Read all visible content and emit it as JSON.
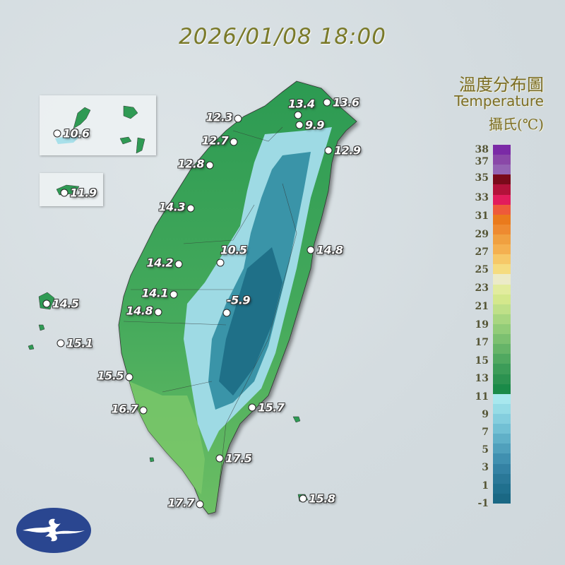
{
  "header": {
    "timestamp": "2026/01/08 18:00"
  },
  "legend": {
    "title_zh": "溫度分布圖",
    "title_en": "Temperature",
    "unit": "攝氏(℃)",
    "ticks": [
      "38",
      "37",
      "35",
      "33",
      "31",
      "29",
      "27",
      "25",
      "23",
      "21",
      "19",
      "17",
      "15",
      "13",
      "11",
      "9",
      "7",
      "5",
      "3",
      "1",
      "-1"
    ],
    "colors": [
      "#7b2aa6",
      "#8a48a8",
      "#9463b3",
      "#7a0a1a",
      "#b3123a",
      "#e21c5c",
      "#ee5a3a",
      "#ea7a1c",
      "#ee8a30",
      "#f0a040",
      "#f4b050",
      "#f6c868",
      "#f5dc80",
      "#ecebc8",
      "#e2ec9e",
      "#d4e88c",
      "#bfe088",
      "#a8d680",
      "#92cc78",
      "#7cc070",
      "#66b468",
      "#50a860",
      "#3c9c58",
      "#2c9250",
      "#1a8a48",
      "#a8e8ee",
      "#96dce6",
      "#84cede",
      "#72c0d4",
      "#60b0c8",
      "#50a0bc",
      "#4090b0",
      "#3482a4",
      "#2a7898",
      "#20708e",
      "#1a6884"
    ]
  },
  "map": {
    "land_colors": {
      "lowland": "#4cae5c",
      "plain": "#7cc86a",
      "hill": "#2e9a50",
      "cold": "#9edae4",
      "mountain": "#2f8aa0"
    },
    "stations": [
      {
        "value": "12.3"
      },
      {
        "value": "12.7"
      },
      {
        "value": "12.8"
      },
      {
        "value": "13.4"
      },
      {
        "value": "13.6"
      },
      {
        "value": "9.9"
      },
      {
        "value": "12.9"
      },
      {
        "value": "10.6"
      },
      {
        "value": "11.9"
      },
      {
        "value": "14.3"
      },
      {
        "value": "14.2"
      },
      {
        "value": "10.5"
      },
      {
        "value": "14.8"
      },
      {
        "value": "14.1"
      },
      {
        "value": "14.8"
      },
      {
        "value": "-5.9"
      },
      {
        "value": "14.5"
      },
      {
        "value": "15.1"
      },
      {
        "value": "15.5"
      },
      {
        "value": "16.7"
      },
      {
        "value": "15.7"
      },
      {
        "value": "17.5"
      },
      {
        "value": "17.7"
      },
      {
        "value": "15.8"
      }
    ]
  },
  "logo": {
    "name": "cwa-logo-icon"
  }
}
